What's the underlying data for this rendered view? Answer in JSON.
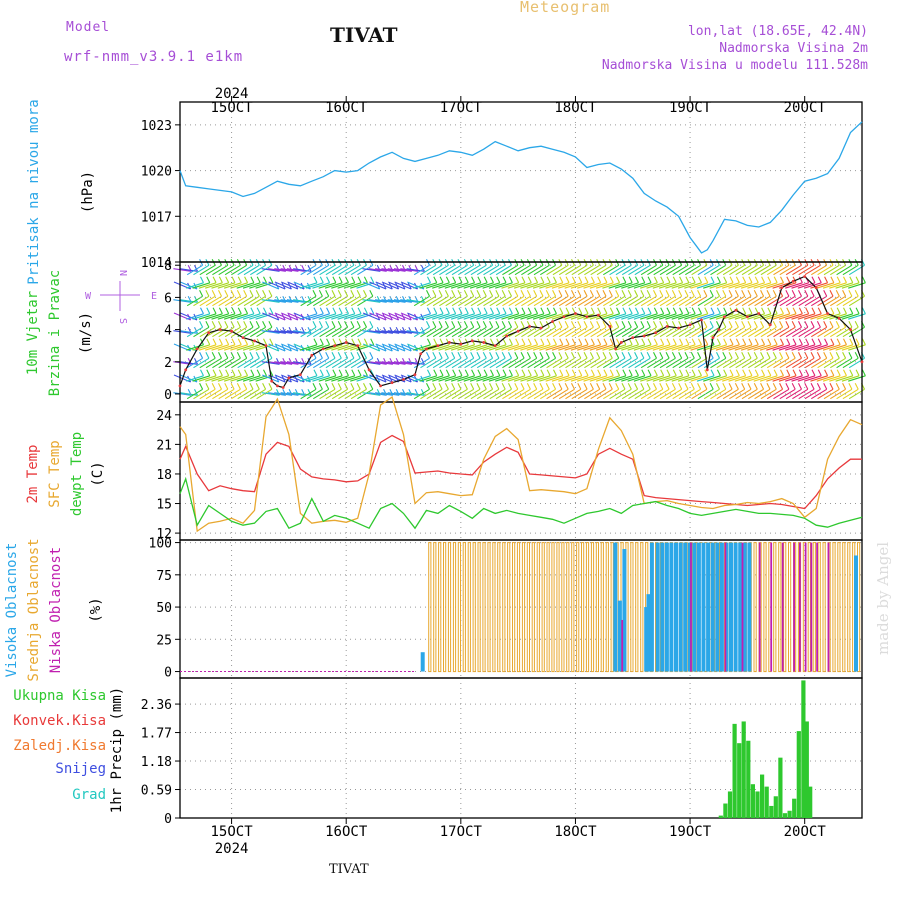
{
  "header": {
    "model_label": "Model",
    "model_name": "wrf-nmm_v3.9.1 e1km",
    "station_title": "TIVAT",
    "product": "Meteogram",
    "coords": "lon,lat (18.65E, 42.4N)",
    "elevation": "Nadmorska Visina 2m",
    "model_elevation": "Nadmorska Visina u modelu 111.528m"
  },
  "footer": {
    "station": "TIVAT",
    "credit": "made by Angel"
  },
  "colors": {
    "pressure": "#2ba7e8",
    "temp2m": "#e8393c",
    "sfc_temp": "#e8a830",
    "dewpoint": "#2ec82e",
    "high_cloud": "#2ba7e8",
    "mid_cloud": "#e8a830",
    "low_cloud": "#c020b0",
    "precip": "#2ec82e"
  },
  "chart_data": [
    {
      "type": "line",
      "panel": "pressure",
      "ylabel_lines": [
        "Pritisak na nivou mora",
        "(hPa)"
      ],
      "xlim": [
        14.55,
        20.5
      ],
      "ylim": [
        1014,
        1024.5
      ],
      "yticks": [
        1014,
        1017,
        1020,
        1023
      ],
      "date_ticks": {
        "x": [
          15,
          16,
          17,
          18,
          19,
          20
        ],
        "labels": [
          "15OCT",
          "16OCT",
          "17OCT",
          "18OCT",
          "19OCT",
          "20OCT"
        ],
        "year": "2024"
      },
      "series": [
        {
          "x": [
            14.55,
            14.6,
            14.7,
            14.8,
            14.9,
            15.0,
            15.1,
            15.2,
            15.3,
            15.4,
            15.5,
            15.6,
            15.7,
            15.8,
            15.9,
            16.0,
            16.1,
            16.2,
            16.3,
            16.4,
            16.5,
            16.6,
            16.7,
            16.8,
            16.9,
            17.0,
            17.1,
            17.2,
            17.3,
            17.4,
            17.5,
            17.6,
            17.7,
            17.8,
            17.9,
            18.0,
            18.1,
            18.2,
            18.3,
            18.4,
            18.5,
            18.6,
            18.7,
            18.8,
            18.9,
            19.0,
            19.05,
            19.1,
            19.15,
            19.2,
            19.3,
            19.4,
            19.5,
            19.6,
            19.7,
            19.8,
            19.9,
            20.0,
            20.1,
            20.2,
            20.3,
            20.4,
            20.5
          ],
          "y": [
            1020.0,
            1019.0,
            1018.9,
            1018.8,
            1018.7,
            1018.6,
            1018.3,
            1018.5,
            1018.9,
            1019.3,
            1019.1,
            1019.0,
            1019.3,
            1019.6,
            1020.0,
            1019.9,
            1020.0,
            1020.5,
            1020.9,
            1021.2,
            1020.8,
            1020.6,
            1020.8,
            1021.0,
            1021.3,
            1021.2,
            1021.0,
            1021.4,
            1021.9,
            1021.6,
            1021.3,
            1021.5,
            1021.6,
            1021.4,
            1021.2,
            1020.9,
            1020.2,
            1020.4,
            1020.5,
            1020.1,
            1019.5,
            1018.5,
            1018.0,
            1017.6,
            1017.0,
            1015.6,
            1015.1,
            1014.6,
            1014.8,
            1015.4,
            1016.8,
            1016.7,
            1016.4,
            1016.3,
            1016.6,
            1017.4,
            1018.4,
            1019.3,
            1019.5,
            1019.8,
            1020.8,
            1022.5,
            1023.2
          ]
        }
      ]
    },
    {
      "type": "line",
      "panel": "wind",
      "ylabel_lines": [
        "10m Vjetar",
        "Brzina i Pravac",
        "(m/s)"
      ],
      "compass": {
        "n": "N",
        "s": "S",
        "w": "W",
        "e": "E"
      },
      "ylim": [
        -0.5,
        8.2
      ],
      "yticks": [
        0,
        2,
        4,
        6,
        8
      ],
      "series": [
        {
          "x": [
            14.55,
            14.6,
            14.7,
            14.8,
            14.9,
            15.0,
            15.1,
            15.2,
            15.3,
            15.35,
            15.4,
            15.45,
            15.5,
            15.6,
            15.7,
            15.8,
            15.9,
            16.0,
            16.1,
            16.2,
            16.3,
            16.4,
            16.5,
            16.6,
            16.65,
            16.7,
            16.8,
            16.9,
            17.0,
            17.1,
            17.2,
            17.3,
            17.4,
            17.5,
            17.6,
            17.7,
            17.8,
            17.9,
            18.0,
            18.1,
            18.2,
            18.3,
            18.35,
            18.4,
            18.5,
            18.6,
            18.7,
            18.8,
            18.9,
            19.0,
            19.1,
            19.15,
            19.2,
            19.25,
            19.3,
            19.4,
            19.5,
            19.6,
            19.7,
            19.8,
            19.9,
            20.0,
            20.1,
            20.2,
            20.3,
            20.4,
            20.5
          ],
          "y": [
            0.5,
            1.5,
            2.8,
            3.8,
            4.0,
            3.9,
            3.5,
            3.3,
            3.0,
            0.8,
            0.5,
            0.4,
            1.0,
            1.2,
            2.4,
            2.8,
            3.0,
            3.2,
            3.0,
            1.5,
            0.5,
            0.7,
            0.9,
            1.2,
            2.5,
            2.8,
            3.0,
            3.2,
            3.1,
            3.3,
            3.2,
            3.0,
            3.6,
            3.9,
            4.2,
            4.1,
            4.5,
            4.8,
            5.0,
            4.8,
            4.9,
            4.2,
            2.8,
            3.2,
            3.5,
            3.6,
            3.8,
            4.2,
            4.1,
            4.3,
            4.6,
            1.5,
            3.5,
            4.0,
            4.8,
            5.2,
            4.8,
            5.0,
            4.3,
            6.6,
            7.0,
            7.3,
            6.6,
            5.0,
            4.7,
            4.0,
            2.0
          ]
        }
      ]
    },
    {
      "type": "line",
      "panel": "temperature",
      "ylabel_lines": [
        "2m Temp",
        "SFC Temp",
        "dewpt Temp",
        "(C)"
      ],
      "ylim": [
        11.3,
        25.3
      ],
      "yticks": [
        12,
        15,
        18,
        21,
        24
      ],
      "series": [
        {
          "name": "2m Temp",
          "x": [
            14.55,
            14.6,
            14.7,
            14.8,
            14.9,
            15.0,
            15.1,
            15.2,
            15.3,
            15.4,
            15.5,
            15.6,
            15.7,
            15.8,
            15.9,
            16.0,
            16.1,
            16.2,
            16.3,
            16.4,
            16.5,
            16.6,
            16.7,
            16.8,
            16.9,
            17.0,
            17.1,
            17.2,
            17.3,
            17.4,
            17.5,
            17.6,
            17.7,
            17.8,
            17.9,
            18.0,
            18.1,
            18.2,
            18.3,
            18.4,
            18.5,
            18.6,
            18.7,
            18.8,
            18.9,
            19.0,
            19.1,
            19.2,
            19.3,
            19.4,
            19.5,
            19.6,
            19.7,
            19.8,
            19.9,
            20.0,
            20.1,
            20.2,
            20.3,
            20.4,
            20.5
          ],
          "y": [
            19.5,
            20.8,
            18.0,
            16.3,
            16.8,
            16.5,
            16.3,
            16.2,
            20.0,
            21.2,
            20.8,
            18.5,
            17.7,
            17.5,
            17.4,
            17.2,
            17.3,
            18.0,
            21.2,
            21.9,
            21.3,
            18.1,
            18.2,
            18.3,
            18.1,
            18.0,
            17.9,
            19.2,
            20.0,
            20.7,
            20.2,
            18.0,
            17.9,
            17.8,
            17.7,
            17.6,
            18.0,
            20.0,
            20.6,
            20.0,
            19.5,
            15.8,
            15.6,
            15.5,
            15.4,
            15.3,
            15.2,
            15.1,
            15.0,
            14.9,
            14.8,
            14.9,
            15.0,
            14.9,
            14.7,
            14.5,
            15.8,
            17.5,
            18.6,
            19.5,
            19.5
          ]
        },
        {
          "name": "SFC Temp",
          "x": [
            14.55,
            14.6,
            14.7,
            14.8,
            14.9,
            15.0,
            15.1,
            15.2,
            15.3,
            15.4,
            15.5,
            15.6,
            15.7,
            15.8,
            15.9,
            16.0,
            16.1,
            16.2,
            16.3,
            16.4,
            16.5,
            16.6,
            16.7,
            16.8,
            16.9,
            17.0,
            17.1,
            17.2,
            17.3,
            17.4,
            17.5,
            17.6,
            17.7,
            17.8,
            17.9,
            18.0,
            18.1,
            18.2,
            18.3,
            18.4,
            18.5,
            18.6,
            18.7,
            18.8,
            18.9,
            19.0,
            19.1,
            19.2,
            19.3,
            19.4,
            19.5,
            19.6,
            19.7,
            19.8,
            19.9,
            20.0,
            20.1,
            20.2,
            20.3,
            20.4,
            20.5
          ],
          "y": [
            22.8,
            22.0,
            12.2,
            13.0,
            13.2,
            13.5,
            13.0,
            14.3,
            23.8,
            25.6,
            22.0,
            14.0,
            13.0,
            13.2,
            13.3,
            13.1,
            13.5,
            18.0,
            25.0,
            25.8,
            22.0,
            15.0,
            16.1,
            16.2,
            16.0,
            15.8,
            15.9,
            19.5,
            21.8,
            22.6,
            21.5,
            16.3,
            16.4,
            16.3,
            16.2,
            16.0,
            16.5,
            20.5,
            23.7,
            22.4,
            20.0,
            15.0,
            15.2,
            15.3,
            15.0,
            14.8,
            14.6,
            14.5,
            14.8,
            14.9,
            15.1,
            15.0,
            15.2,
            15.5,
            15.0,
            13.6,
            14.5,
            19.5,
            21.8,
            23.5,
            23.0
          ]
        },
        {
          "name": "dewpt Temp",
          "x": [
            14.55,
            14.6,
            14.7,
            14.8,
            14.9,
            15.0,
            15.1,
            15.2,
            15.3,
            15.4,
            15.5,
            15.6,
            15.7,
            15.8,
            15.9,
            16.0,
            16.1,
            16.2,
            16.3,
            16.4,
            16.5,
            16.6,
            16.7,
            16.8,
            16.9,
            17.0,
            17.1,
            17.2,
            17.3,
            17.4,
            17.5,
            17.6,
            17.7,
            17.8,
            17.9,
            18.0,
            18.1,
            18.2,
            18.3,
            18.4,
            18.5,
            18.6,
            18.7,
            18.8,
            18.9,
            19.0,
            19.1,
            19.2,
            19.3,
            19.4,
            19.5,
            19.6,
            19.7,
            19.8,
            19.9,
            20.0,
            20.1,
            20.2,
            20.3,
            20.4,
            20.5
          ],
          "y": [
            16.0,
            17.5,
            12.8,
            14.8,
            14.0,
            13.2,
            12.8,
            13.0,
            14.2,
            14.5,
            12.5,
            13.0,
            15.5,
            13.2,
            13.8,
            13.5,
            13.0,
            12.5,
            14.5,
            15.0,
            14.0,
            12.5,
            14.3,
            14.0,
            14.8,
            14.2,
            13.5,
            14.5,
            14.0,
            14.3,
            14.0,
            13.8,
            13.6,
            13.4,
            13.0,
            13.5,
            14.0,
            14.2,
            14.5,
            14.0,
            14.8,
            15.0,
            15.2,
            14.8,
            14.5,
            14.0,
            13.8,
            14.0,
            14.2,
            14.4,
            14.2,
            14.0,
            14.0,
            13.9,
            13.8,
            13.5,
            12.8,
            12.6,
            13.0,
            13.3,
            13.6
          ]
        }
      ]
    },
    {
      "type": "bar",
      "panel": "cloud",
      "ylabel_lines": [
        "Visoka Oblacnost",
        "Srednja Oblacnost",
        "Niska Oblacnost",
        "(%)"
      ],
      "ylim": [
        -5,
        102
      ],
      "yticks": [
        0,
        25,
        50,
        75,
        100
      ],
      "series": [
        {
          "name": "Visoka Oblacnost",
          "x": [
            16.65,
            18.33,
            18.37,
            18.41,
            18.6,
            18.62,
            18.65,
            18.7,
            18.74,
            18.78,
            18.82,
            18.86,
            18.9,
            18.94,
            18.98,
            19.02,
            19.06,
            19.1,
            19.14,
            19.18,
            19.22,
            19.26,
            19.3,
            19.34,
            19.38,
            19.42,
            19.46,
            19.5,
            20.43
          ],
          "y": [
            15,
            100,
            55,
            95,
            50,
            60,
            100,
            100,
            100,
            100,
            100,
            100,
            100,
            100,
            100,
            100,
            100,
            100,
            100,
            100,
            100,
            100,
            100,
            100,
            100,
            100,
            100,
            100,
            90
          ]
        },
        {
          "name": "Srednja Oblacnost",
          "x_start": 16.72,
          "x_end": 20.47,
          "step": 0.043,
          "y": 100
        },
        {
          "name": "Niska Oblacnost",
          "x": [
            18.4,
            19.0,
            19.3,
            19.45,
            19.6,
            19.7,
            19.8,
            19.9,
            19.95,
            20.0,
            20.05,
            20.1,
            20.2
          ],
          "y": [
            40,
            100,
            100,
            100,
            100,
            100,
            100,
            100,
            100,
            100,
            100,
            100,
            100
          ]
        }
      ]
    },
    {
      "type": "bar",
      "panel": "precip",
      "ylabel_lines": [
        "1hr Precip (mm)"
      ],
      "legend": [
        "Ukupna Kisa",
        "Konvek.Kisa",
        "Zaledj.Kisa",
        "Snijeg",
        "Grad"
      ],
      "ylim": [
        0,
        2.9
      ],
      "yticks": [
        0,
        0.59,
        1.18,
        1.77,
        2.36
      ],
      "series": [
        {
          "name": "Ukupna Kisa",
          "x": [
            19.25,
            19.29,
            19.33,
            19.37,
            19.41,
            19.45,
            19.49,
            19.53,
            19.57,
            19.61,
            19.65,
            19.69,
            19.73,
            19.77,
            19.81,
            19.85,
            19.89,
            19.93,
            19.97,
            20.0,
            20.03
          ],
          "y": [
            0.05,
            0.3,
            0.55,
            1.95,
            1.55,
            2.0,
            1.6,
            0.7,
            0.55,
            0.9,
            0.65,
            0.25,
            0.45,
            1.25,
            0.1,
            0.15,
            0.4,
            1.8,
            2.85,
            2.0,
            0.65
          ]
        }
      ]
    }
  ]
}
